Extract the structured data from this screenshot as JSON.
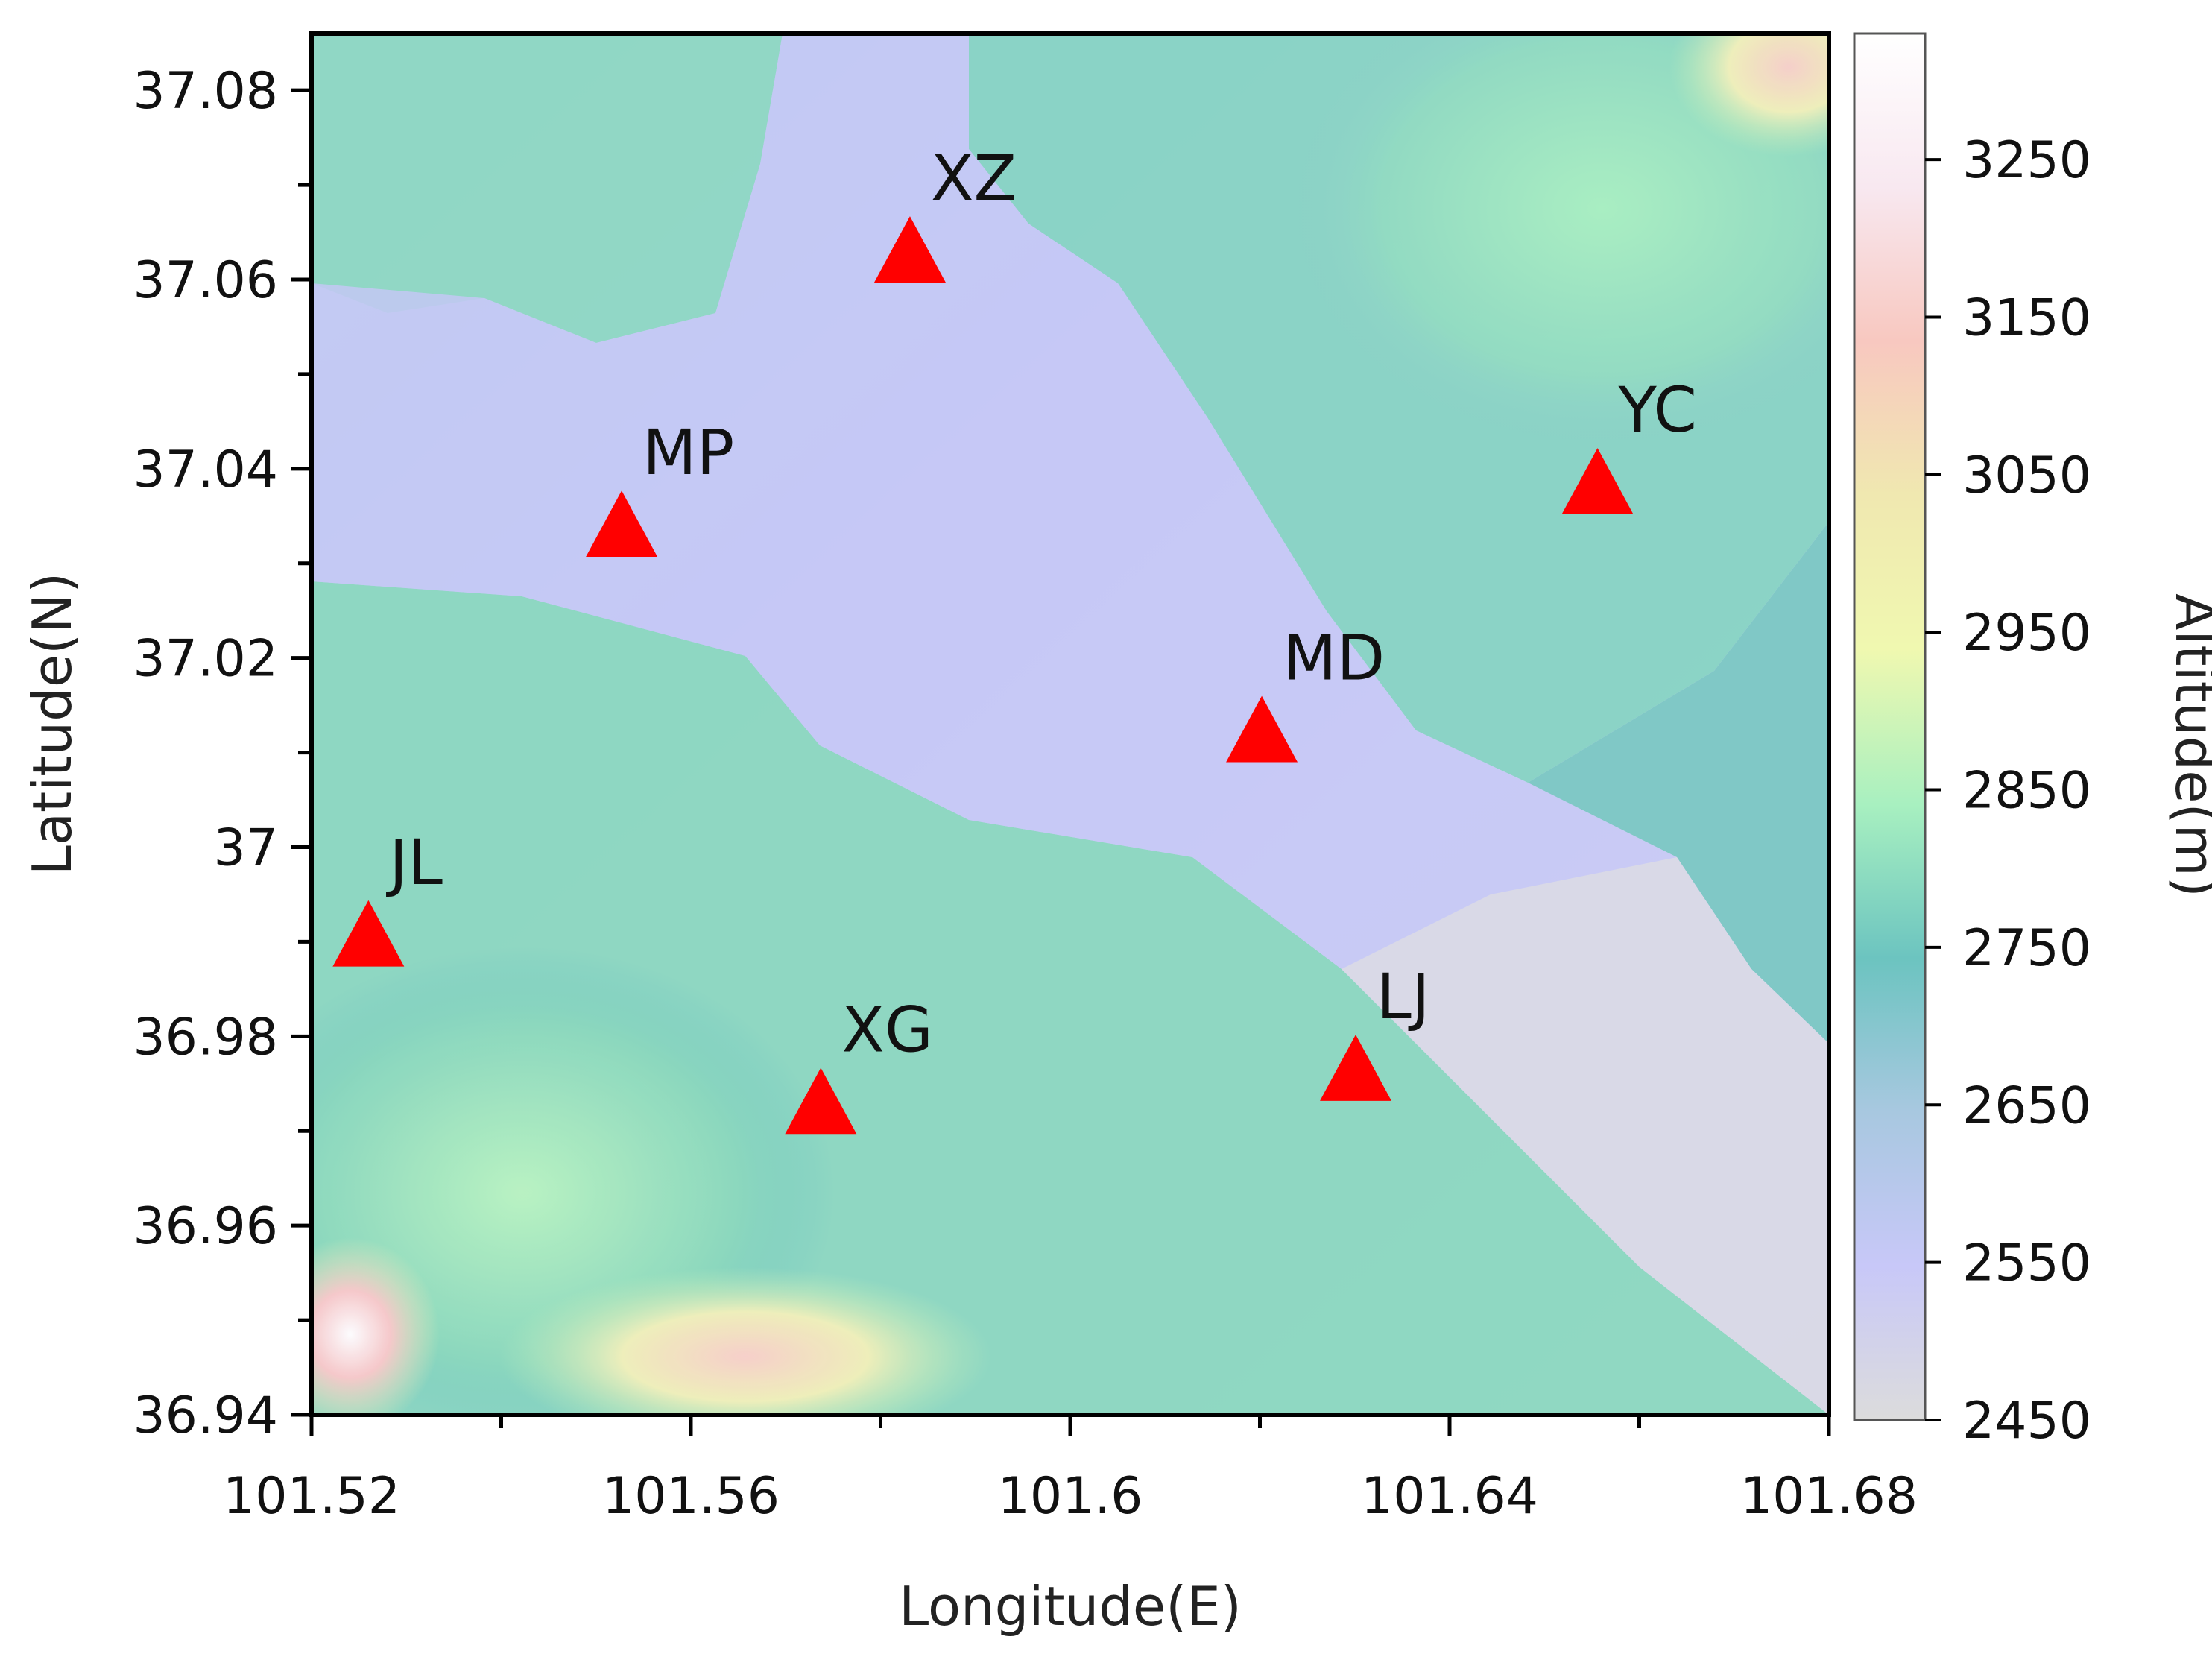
{
  "map": {
    "x_axis": {
      "label": "Longitude(E)",
      "range": [
        101.52,
        101.68
      ],
      "tick_labels": [
        "101.52",
        "101.56",
        "101.6",
        "101.64",
        "101.68"
      ],
      "tick_values": [
        101.52,
        101.56,
        101.6,
        101.64,
        101.68
      ]
    },
    "y_axis": {
      "label": "Latitude(N)",
      "range": [
        36.94,
        37.086
      ],
      "tick_labels": [
        "36.94",
        "36.96",
        "36.98",
        "37",
        "37.02",
        "37.04",
        "37.06",
        "37.08"
      ],
      "tick_values": [
        36.94,
        36.96,
        36.98,
        37.0,
        37.02,
        37.04,
        37.06,
        37.08
      ]
    },
    "colorbar": {
      "label": "Altitude(m)",
      "range": [
        2450,
        3330
      ],
      "tick_labels": [
        "2450",
        "2550",
        "2650",
        "2750",
        "2850",
        "2950",
        "3050",
        "3150",
        "3250"
      ],
      "tick_values": [
        2450,
        2550,
        2650,
        2750,
        2850,
        2950,
        3050,
        3150,
        3250
      ],
      "colors": [
        "#dcdcdc",
        "#c8c8f8",
        "#a8c8e0",
        "#6cc4c0",
        "#a8f0c0",
        "#f0f8b0",
        "#f0e8b0",
        "#f8c8c0",
        "#f8e8f0",
        "#ffffff"
      ]
    },
    "marker_color": "#ff0000",
    "stations": [
      {
        "name": "XZ",
        "lon": 101.5831,
        "lat": 37.0629
      },
      {
        "name": "MP",
        "lon": 101.5527,
        "lat": 37.0339
      },
      {
        "name": "YC",
        "lon": 101.6556,
        "lat": 37.0384
      },
      {
        "name": "MD",
        "lon": 101.6202,
        "lat": 37.0122
      },
      {
        "name": "JL",
        "lon": 101.526,
        "lat": 36.9906
      },
      {
        "name": "XG",
        "lon": 101.5737,
        "lat": 36.9729
      },
      {
        "name": "LJ",
        "lon": 101.6301,
        "lat": 36.9764
      }
    ]
  }
}
